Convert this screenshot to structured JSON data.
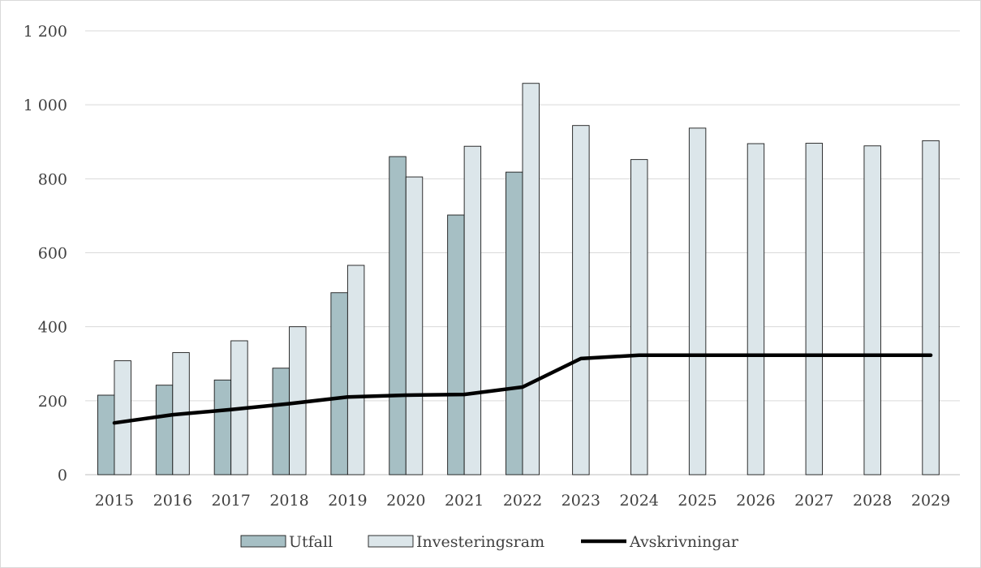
{
  "chart_data": {
    "type": "bar",
    "title": "",
    "xlabel": "",
    "ylabel": "",
    "categories": [
      "2015",
      "2016",
      "2017",
      "2018",
      "2019",
      "2020",
      "2021",
      "2022",
      "2023",
      "2024",
      "2025",
      "2026",
      "2027",
      "2028",
      "2029"
    ],
    "ylim": [
      0,
      1200
    ],
    "yticks": [
      0,
      200,
      400,
      600,
      800,
      1000,
      1200
    ],
    "ytick_labels": [
      "0",
      "200",
      "400",
      "600",
      "800",
      "1 000",
      "1 200"
    ],
    "grid": true,
    "legend_position": "bottom",
    "series": [
      {
        "name": "Utfall",
        "kind": "bar",
        "color": "#a6bfc4",
        "values": [
          215,
          242,
          256,
          288,
          492,
          860,
          702,
          818,
          null,
          null,
          null,
          null,
          null,
          null,
          null
        ]
      },
      {
        "name": "Investeringsram",
        "kind": "bar",
        "color": "#dce6ea",
        "values": [
          308,
          330,
          362,
          400,
          566,
          805,
          888,
          1058,
          944,
          852,
          937,
          895,
          896,
          889,
          903
        ]
      },
      {
        "name": "Avskrivningar",
        "kind": "line",
        "color": "#000000",
        "values": [
          140,
          162,
          176,
          192,
          210,
          215,
          217,
          237,
          314,
          323,
          323,
          323,
          323,
          323,
          323
        ]
      }
    ]
  }
}
